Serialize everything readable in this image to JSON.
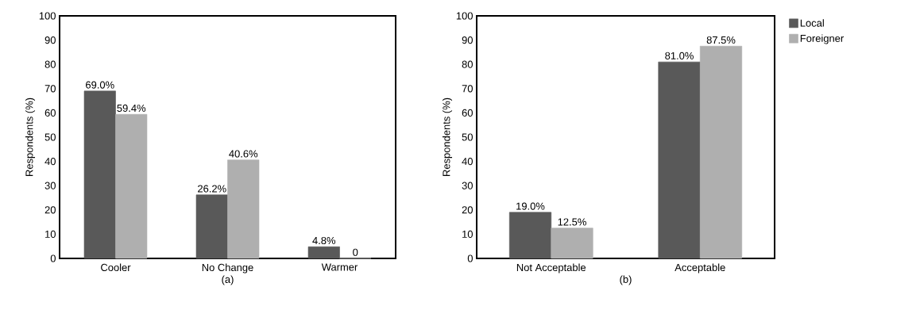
{
  "chart_data": [
    {
      "type": "bar",
      "categories": [
        "Cooler",
        "No Change",
        "Warmer"
      ],
      "xlabel": "(a)",
      "ylabel": "Respondents (%)",
      "ylim": [
        0,
        100
      ],
      "yticks": [
        0,
        10,
        20,
        30,
        40,
        50,
        60,
        70,
        80,
        90,
        100
      ],
      "legend": false,
      "series": [
        {
          "color": "#595959",
          "values": [
            69.0,
            26.2,
            4.8
          ],
          "value_labels": [
            "69.0%",
            "26.2%",
            "4.8%"
          ]
        },
        {
          "color": "#afafaf",
          "values": [
            59.4,
            40.6,
            0
          ],
          "value_labels": [
            "59.4%",
            "40.6%",
            "0"
          ]
        }
      ]
    },
    {
      "type": "bar",
      "categories": [
        "Not Acceptable",
        "Acceptable"
      ],
      "xlabel": "(b)",
      "ylabel": "Respondents (%)",
      "ylim": [
        0,
        100
      ],
      "yticks": [
        0,
        10,
        20,
        30,
        40,
        50,
        60,
        70,
        80,
        90,
        100
      ],
      "legend": "right",
      "series": [
        {
          "name": "Local",
          "color": "#595959",
          "values": [
            19.0,
            81.0
          ],
          "value_labels": [
            "19.0%",
            "81.0%"
          ]
        },
        {
          "name": "Foreigner",
          "color": "#afafaf",
          "values": [
            12.5,
            87.5
          ],
          "value_labels": [
            "12.5%",
            "87.5%"
          ]
        }
      ]
    }
  ]
}
